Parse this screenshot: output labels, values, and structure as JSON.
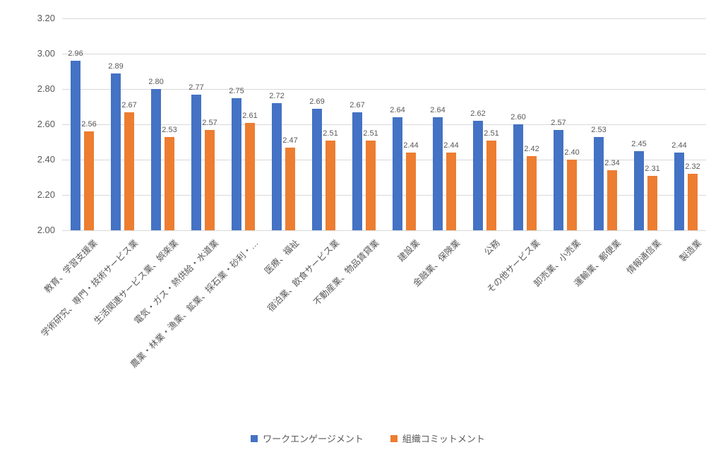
{
  "chart_data": {
    "type": "bar",
    "categories": [
      "教育、学習支援業",
      "学術研究、専門・技術サービス業",
      "生活関連サービス業、娯楽業",
      "電気・ガス・熱供給・水道業",
      "農業・林業・漁業、鉱業、採石業・砂利・…",
      "医療、福祉",
      "宿泊業、飲食サービス業",
      "不動産業、物品賃貸業",
      "建設業",
      "金融業、保険業",
      "公務",
      "その他サービス業",
      "卸売業、小売業",
      "運輸業、郵便業",
      "情報通信業",
      "製造業"
    ],
    "series": [
      {
        "name": "ワークエンゲージメント",
        "color": "#4472C4",
        "values": [
          2.96,
          2.89,
          2.8,
          2.77,
          2.75,
          2.72,
          2.69,
          2.67,
          2.64,
          2.64,
          2.62,
          2.6,
          2.57,
          2.53,
          2.45,
          2.44
        ]
      },
      {
        "name": "組織コミットメント",
        "color": "#ED7D31",
        "values": [
          2.56,
          2.67,
          2.53,
          2.57,
          2.61,
          2.47,
          2.51,
          2.51,
          2.44,
          2.44,
          2.51,
          2.42,
          2.4,
          2.34,
          2.31,
          2.32
        ]
      }
    ],
    "ylim": [
      2.0,
      3.2
    ],
    "y_ticks": [
      "3.20",
      "3.00",
      "2.80",
      "2.60",
      "2.40",
      "2.20",
      "2.00"
    ],
    "value_label_decimals": 2,
    "grid": true,
    "legend_position": "bottom",
    "colors": {
      "gridline": "#d9d9d9",
      "axis_text": "#595959",
      "value_label_text": "#595959"
    }
  }
}
